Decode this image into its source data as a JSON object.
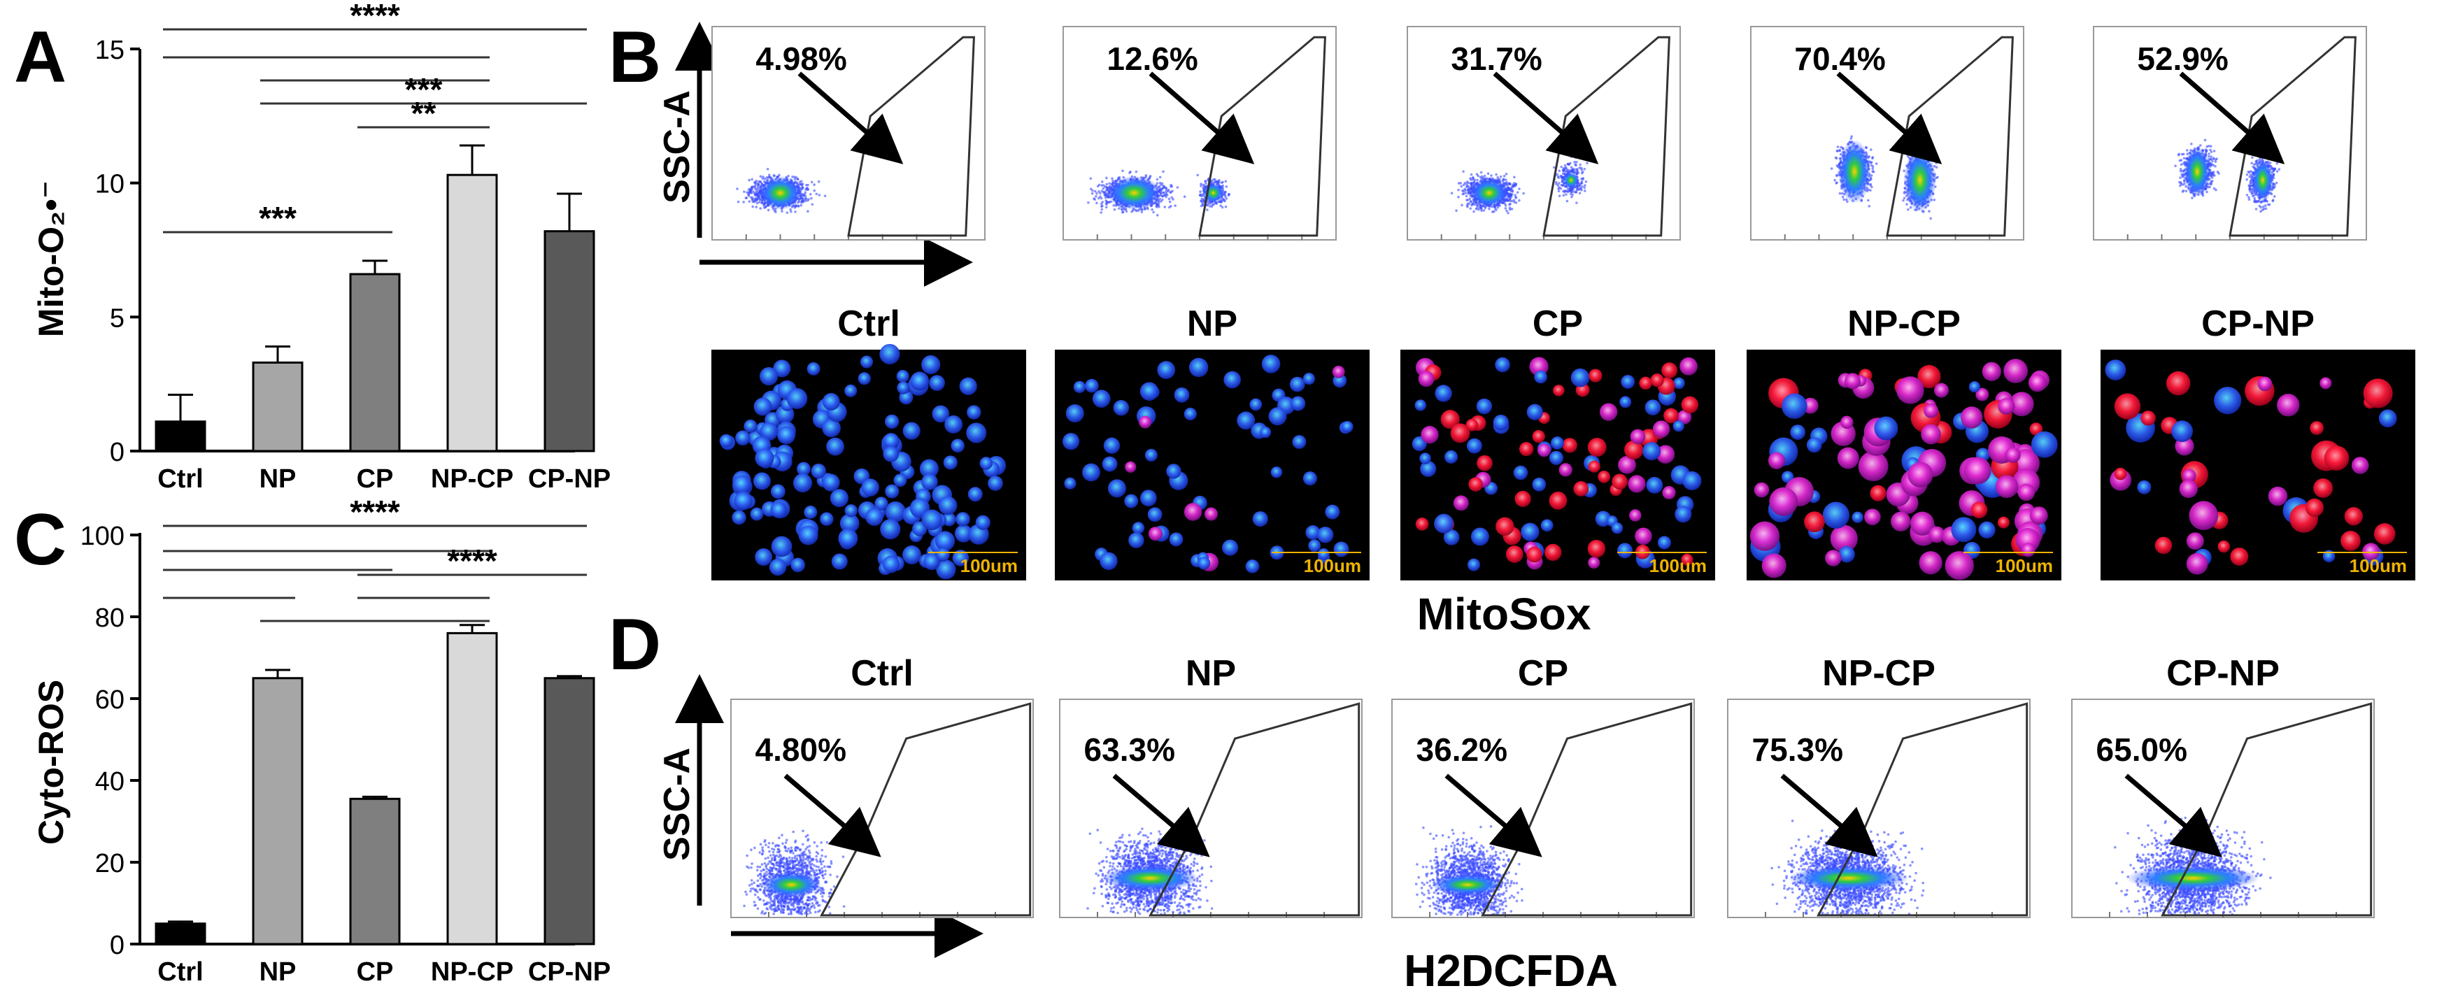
{
  "panels": {
    "A": {
      "letter": "A"
    },
    "B": {
      "letter": "B",
      "x_axis_label": "",
      "y_axis_label": "SSC-A",
      "caption": "MitoSox",
      "percentages": [
        "4.98%",
        "12.6%",
        "31.7%",
        "70.4%",
        "52.9%"
      ],
      "image_labels": [
        "Ctrl",
        "NP",
        "CP",
        "NP-CP",
        "CP-NP"
      ],
      "scale_bar_label": "100um"
    },
    "C": {
      "letter": "C"
    },
    "D": {
      "letter": "D",
      "y_axis_label": "SSC-A",
      "x_axis_label": "H2DCFDA",
      "plot_labels": [
        "Ctrl",
        "NP",
        "CP",
        "NP-CP",
        "CP-NP"
      ],
      "percentages": [
        "4.80%",
        "63.3%",
        "36.2%",
        "75.3%",
        "65.0%"
      ]
    }
  },
  "colors": {
    "ctrl": "#000000",
    "np": "#a6a6a6",
    "cp": "#7f7f7f",
    "npcp": "#d9d9d9",
    "cpnp": "#595959"
  },
  "chart_data": [
    {
      "id": "A",
      "type": "bar",
      "ylabel": "Mito-O₂•⁻",
      "categories": [
        "Ctrl",
        "NP",
        "CP",
        "NP-CP",
        "CP-NP"
      ],
      "values": [
        1.1,
        3.3,
        6.6,
        10.3,
        8.2
      ],
      "errors": [
        1.0,
        0.6,
        0.5,
        1.1,
        1.4
      ],
      "ylim": [
        0,
        15
      ],
      "yticks": [
        0,
        5,
        10,
        15
      ],
      "significance": [
        {
          "from": 0,
          "to": 4,
          "label": "****"
        },
        {
          "from": 0,
          "to": 3,
          "label": ""
        },
        {
          "from": 1,
          "to": 3,
          "label": ""
        },
        {
          "from": 1,
          "to": 4,
          "label": "***"
        },
        {
          "from": 2,
          "to": 3,
          "label": "**"
        },
        {
          "from": 0,
          "to": 2,
          "label": "***"
        }
      ]
    },
    {
      "id": "C",
      "type": "bar",
      "ylabel": "Cyto-ROS",
      "categories": [
        "Ctrl",
        "NP",
        "CP",
        "NP-CP",
        "CP-NP"
      ],
      "values": [
        5,
        65,
        35.5,
        76,
        65
      ],
      "errors": [
        0.5,
        2,
        0.5,
        2,
        0.5
      ],
      "ylim": [
        0,
        100
      ],
      "yticks": [
        0,
        20,
        40,
        60,
        80,
        100
      ],
      "significance": [
        {
          "from": 0,
          "to": 4,
          "label": "****"
        },
        {
          "from": 0,
          "to": 3,
          "label": ""
        },
        {
          "from": 0,
          "to": 2,
          "label": ""
        },
        {
          "from": 2,
          "to": 4,
          "label": "****"
        },
        {
          "from": 0,
          "to": 1,
          "label": ""
        },
        {
          "from": 2,
          "to": 3,
          "label": ""
        },
        {
          "from": 1,
          "to": 3,
          "label": ""
        }
      ]
    }
  ]
}
